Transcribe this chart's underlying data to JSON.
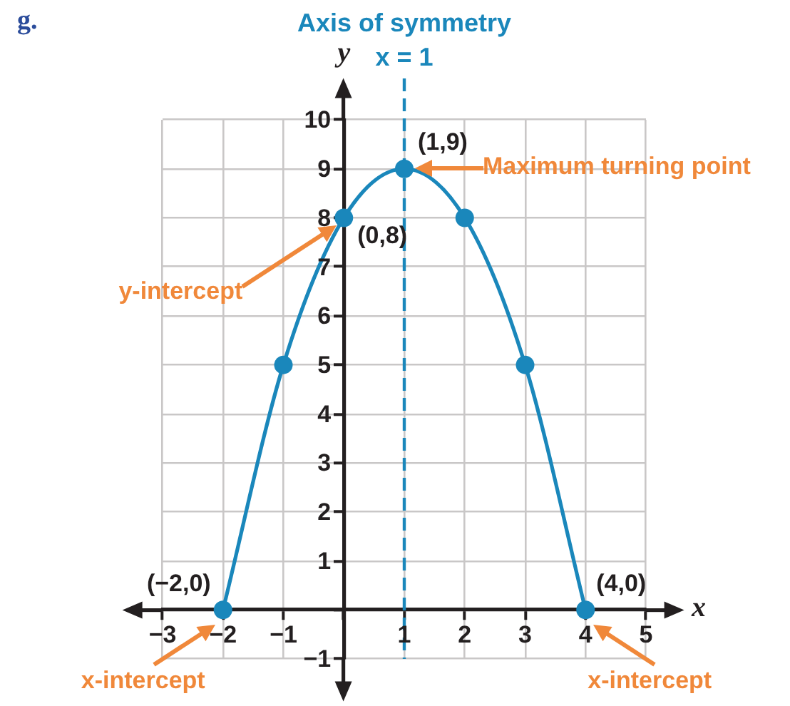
{
  "chart_data": {
    "type": "line",
    "x": [
      -2,
      -1,
      0,
      1,
      2,
      3,
      4
    ],
    "series": [
      {
        "color": "#1a87bb",
        "values": [
          0,
          5,
          8,
          9,
          8,
          5,
          0
        ]
      }
    ],
    "xlim": [
      -3,
      5
    ],
    "ylim": [
      -1,
      10
    ],
    "xticks": [
      -3,
      -2,
      -1,
      {
        "value": 0,
        "label": null
      },
      1,
      2,
      3,
      4,
      5
    ],
    "yticks": [
      -1,
      {
        "value": 0,
        "label": null
      },
      1,
      2,
      3,
      4,
      5,
      6,
      7,
      8,
      9,
      10
    ],
    "xlabel": "x",
    "ylabel": "y",
    "ref_lines": [
      {
        "axis": "x",
        "value": 1,
        "label": "x = 1",
        "color": "#1a87bb",
        "line_style": "dashed"
      }
    ],
    "annotations": [
      "g.",
      "Axis of symmetry",
      {
        "text": "(1,9)",
        "x": 1,
        "y": 9
      },
      "Maximum turning point",
      {
        "text": "(0,8)",
        "x": 0,
        "y": 8
      },
      "y-intercept",
      {
        "text": "(−2,0)",
        "x": -2,
        "y": 0
      },
      {
        "text": "x-intercept",
        "x": -2,
        "y": 0
      },
      {
        "text": "(4,0)",
        "x": 4,
        "y": 0
      },
      {
        "text": "x-intercept",
        "x": 4,
        "y": 0
      }
    ],
    "grid": true,
    "marker": "circle",
    "line_style": "solid"
  }
}
